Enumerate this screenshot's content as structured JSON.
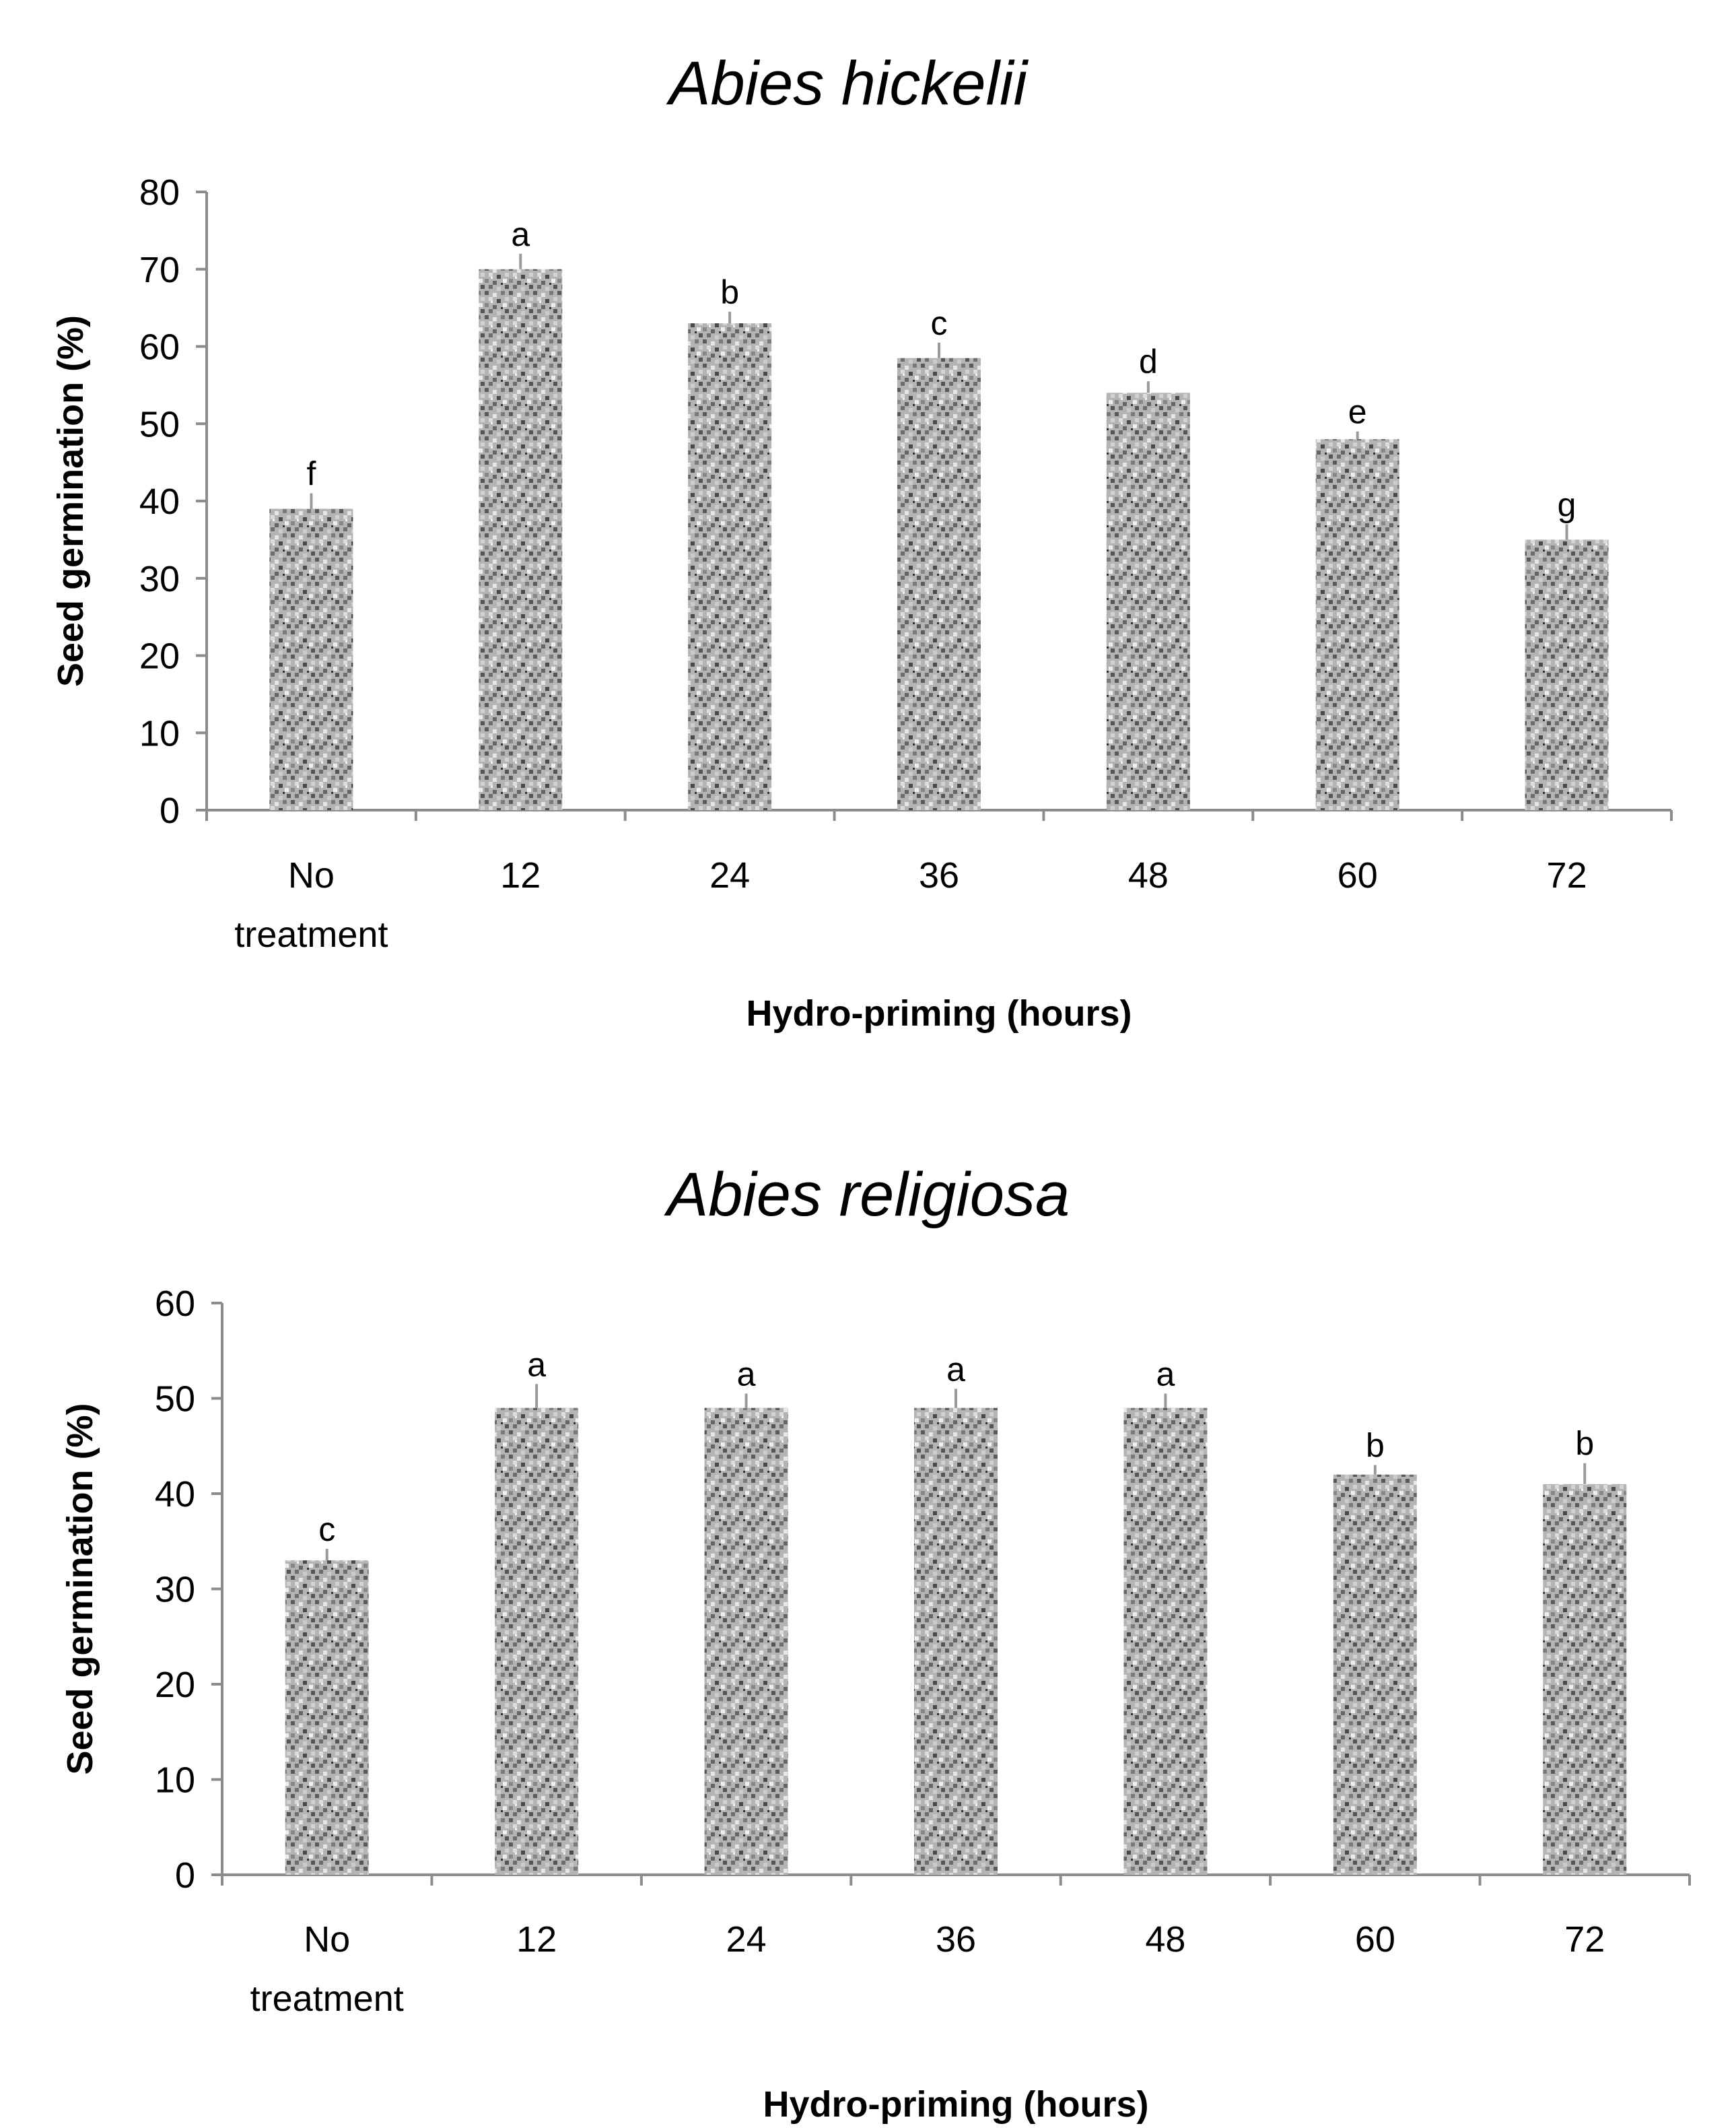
{
  "chart_data": [
    {
      "type": "bar",
      "title": "Abies hickelii",
      "xlabel": "Hydro-priming (hours)",
      "ylabel": "Seed germination (%)",
      "ylim": [
        0,
        80
      ],
      "yticks": [
        0,
        10,
        20,
        30,
        40,
        50,
        60,
        70,
        80
      ],
      "categories": [
        [
          "No",
          "treatment"
        ],
        [
          "12"
        ],
        [
          "24"
        ],
        [
          "36"
        ],
        [
          "48"
        ],
        [
          "60"
        ],
        [
          "72"
        ]
      ],
      "values": [
        39,
        70,
        63,
        58.5,
        54,
        48,
        35
      ],
      "errors": [
        2,
        2,
        1.5,
        2,
        1.5,
        1,
        2
      ],
      "significance": [
        "f",
        "a",
        "b",
        "c",
        "d",
        "e",
        "g"
      ],
      "grid": false
    },
    {
      "type": "bar",
      "title": "Abies religiosa",
      "xlabel": "Hydro-priming (hours)",
      "ylabel": "Seed germination (%)",
      "ylim": [
        0,
        60
      ],
      "yticks": [
        0,
        10,
        20,
        30,
        40,
        50,
        60
      ],
      "categories": [
        [
          "No",
          "treatment"
        ],
        [
          "12"
        ],
        [
          "24"
        ],
        [
          "36"
        ],
        [
          "48"
        ],
        [
          "60"
        ],
        [
          "72"
        ]
      ],
      "values": [
        33,
        49,
        49,
        49,
        49,
        42,
        41
      ],
      "errors": [
        1.2,
        2.5,
        1.5,
        2,
        1.5,
        1,
        2.2
      ],
      "significance": [
        "c",
        "a",
        "a",
        "a",
        "a",
        "b",
        "b"
      ],
      "grid": false
    }
  ]
}
